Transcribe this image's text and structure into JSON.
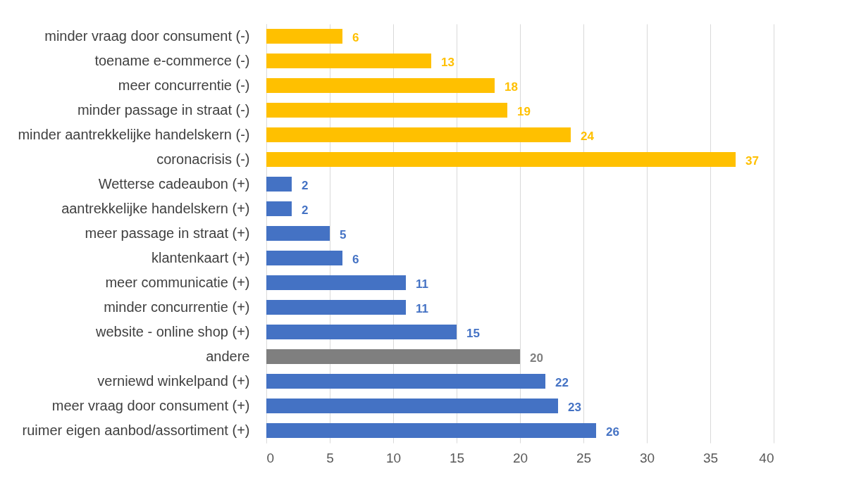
{
  "chart_data": {
    "type": "bar",
    "orientation": "horizontal",
    "categories": [
      "minder vraag door consument (-)",
      "toename e-commerce (-)",
      "meer concurrentie (-)",
      "minder passage in straat (-)",
      "minder aantrekkelijke handelskern (-)",
      "coronacrisis (-)",
      "Wetterse cadeaubon (+)",
      "aantrekkelijke handelskern (+)",
      "meer passage in straat (+)",
      "klantenkaart (+)",
      "meer communicatie (+)",
      "minder concurrentie (+)",
      "website - online shop (+)",
      "andere",
      "verniewd winkelpand (+)",
      "meer vraag door consument (+)",
      "ruimer eigen aanbod/assortiment (+)"
    ],
    "values": [
      6,
      13,
      18,
      19,
      24,
      37,
      2,
      2,
      5,
      6,
      11,
      11,
      15,
      20,
      22,
      23,
      26
    ],
    "colors": [
      "#ffc000",
      "#ffc000",
      "#ffc000",
      "#ffc000",
      "#ffc000",
      "#ffc000",
      "#4472c4",
      "#4472c4",
      "#4472c4",
      "#4472c4",
      "#4472c4",
      "#4472c4",
      "#4472c4",
      "#7f7f7f",
      "#4472c4",
      "#4472c4",
      "#4472c4"
    ],
    "xlim": [
      0,
      40
    ],
    "xticks": [
      0,
      5,
      10,
      15,
      20,
      25,
      30,
      35,
      40
    ],
    "grid": "x",
    "data_labels": true
  }
}
